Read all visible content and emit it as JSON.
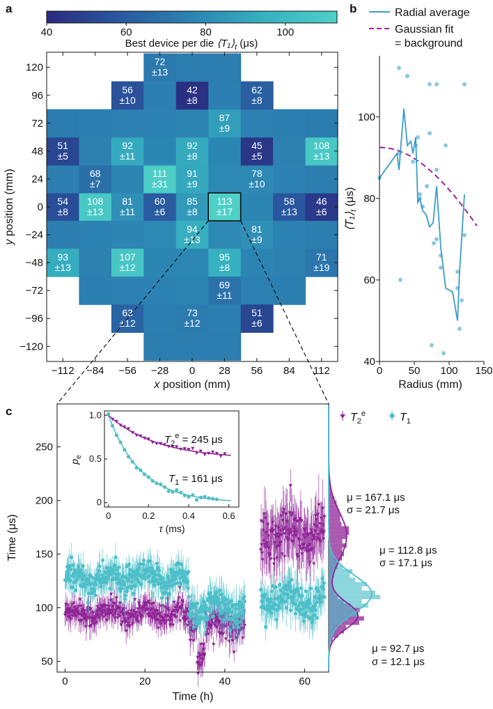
{
  "panel_labels": {
    "a": "a",
    "b": "b",
    "c": "c"
  },
  "colors": {
    "t1": "#4dbfc9",
    "t2e": "#8e2396",
    "radial": "#3a9cc8",
    "gauss": "#a0209a",
    "dots": "#8cc8e0"
  },
  "chart_data": [
    {
      "type": "heatmap",
      "panel": "a",
      "colorbar": {
        "label_prefix": "Best device per die ",
        "label_sym": "⟨T₁⟩",
        "label_sub": "t",
        "label_unit": " (μs)",
        "ticks": [
          40,
          60,
          80,
          100
        ],
        "range": [
          40,
          113
        ]
      },
      "xlabel": "x position (mm)",
      "ylabel": "y position (mm)",
      "xticks": [
        "−112",
        "−84",
        "−56",
        "−28",
        "0",
        "28",
        "56",
        "84",
        "112"
      ],
      "yticks": [
        "120",
        "96",
        "72",
        "48",
        "24",
        "0",
        "−24",
        "−48",
        "−72",
        "−96",
        "−120"
      ],
      "xtick_values": [
        -112,
        -84,
        -56,
        -28,
        0,
        28,
        56,
        84,
        112
      ],
      "ytick_values": [
        120,
        96,
        72,
        48,
        24,
        0,
        -24,
        -48,
        -72,
        -96,
        -120
      ],
      "highlight_die": [
        28,
        0
      ],
      "dies": [
        {
          "x": -28,
          "y": 120,
          "v": 72,
          "e": 13
        },
        {
          "x": -56,
          "y": 96,
          "v": 56,
          "e": 10
        },
        {
          "x": 0,
          "y": 96,
          "v": 42,
          "e": 8
        },
        {
          "x": 56,
          "y": 96,
          "v": 62,
          "e": 8
        },
        {
          "x": 28,
          "y": 72,
          "v": 87,
          "e": 9
        },
        {
          "x": -112,
          "y": 48,
          "v": 51,
          "e": 5
        },
        {
          "x": -56,
          "y": 48,
          "v": 92,
          "e": 11
        },
        {
          "x": 0,
          "y": 48,
          "v": 92,
          "e": 8
        },
        {
          "x": 56,
          "y": 48,
          "v": 45,
          "e": 5
        },
        {
          "x": 112,
          "y": 48,
          "v": 108,
          "e": 13
        },
        {
          "x": -84,
          "y": 24,
          "v": 68,
          "e": 7
        },
        {
          "x": -28,
          "y": 24,
          "v": 111,
          "e": 31
        },
        {
          "x": 0,
          "y": 24,
          "v": 91,
          "e": 9
        },
        {
          "x": 56,
          "y": 24,
          "v": 78,
          "e": 10
        },
        {
          "x": -112,
          "y": 0,
          "v": 54,
          "e": 8
        },
        {
          "x": -84,
          "y": 0,
          "v": 108,
          "e": 13
        },
        {
          "x": -56,
          "y": 0,
          "v": 81,
          "e": 11
        },
        {
          "x": -28,
          "y": 0,
          "v": 60,
          "e": 6
        },
        {
          "x": 0,
          "y": 0,
          "v": 85,
          "e": 8
        },
        {
          "x": 28,
          "y": 0,
          "v": 113,
          "e": 17
        },
        {
          "x": 84,
          "y": 0,
          "v": 58,
          "e": 13
        },
        {
          "x": 112,
          "y": 0,
          "v": 46,
          "e": 6
        },
        {
          "x": 0,
          "y": -24,
          "v": 94,
          "e": 13
        },
        {
          "x": 56,
          "y": -24,
          "v": 81,
          "e": 9
        },
        {
          "x": -112,
          "y": -48,
          "v": 93,
          "e": 13
        },
        {
          "x": -56,
          "y": -48,
          "v": 107,
          "e": 12
        },
        {
          "x": 28,
          "y": -48,
          "v": 95,
          "e": 8
        },
        {
          "x": 112,
          "y": -48,
          "v": 71,
          "e": 19
        },
        {
          "x": 28,
          "y": -72,
          "v": 69,
          "e": 11
        },
        {
          "x": -56,
          "y": -96,
          "v": 63,
          "e": 12
        },
        {
          "x": 0,
          "y": -96,
          "v": 73,
          "e": 12
        },
        {
          "x": 56,
          "y": -96,
          "v": 51,
          "e": 6
        }
      ]
    },
    {
      "type": "line",
      "panel": "b",
      "xlabel": "Radius (mm)",
      "ylabel_sym": "⟨T₁⟩",
      "ylabel_sub": "t",
      "ylabel_unit": " (μs)",
      "xlim": [
        0,
        150
      ],
      "ylim": [
        40,
        115
      ],
      "xticks": [
        0,
        50,
        100,
        150
      ],
      "yticks": [
        40,
        60,
        80,
        100
      ],
      "legend": [
        "Radial average",
        "Gaussian fit",
        "= background"
      ],
      "radial_average": {
        "x": [
          0,
          25,
          28,
          35,
          40,
          45,
          48,
          52,
          55,
          58,
          62,
          67,
          72,
          77,
          82,
          88,
          95,
          105,
          112,
          115,
          122
        ],
        "y": [
          85,
          91,
          87,
          102,
          93,
          94,
          91,
          95,
          79,
          80,
          77,
          76,
          73,
          74,
          83,
          68,
          58,
          57,
          50,
          62,
          81
        ]
      },
      "gaussian_fit": {
        "amplitude": 92.5,
        "sigma": 205,
        "x_range": [
          0,
          140
        ]
      },
      "scatter": {
        "x": [
          0,
          28,
          28,
          30,
          40,
          48,
          52,
          55,
          58,
          58,
          62,
          68,
          72,
          72,
          75,
          78,
          82,
          82,
          82,
          88,
          88,
          92,
          95,
          112,
          112,
          115,
          118,
          122,
          122
        ],
        "y": [
          85,
          91,
          112,
          60,
          110,
          89,
          93,
          95,
          80,
          81,
          78,
          83,
          96,
          108,
          44,
          69,
          108,
          87,
          70,
          63,
          66,
          42,
          93,
          62,
          58,
          48,
          55,
          108,
          71
        ]
      }
    },
    {
      "type": "scatter",
      "panel": "c",
      "xlabel": "Time (h)",
      "ylabel": "Time (μs)",
      "xlim": [
        -2,
        66
      ],
      "ylim": [
        40,
        290
      ],
      "xticks": [
        0,
        20,
        40,
        60
      ],
      "yticks": [
        50,
        100,
        150,
        200,
        250
      ],
      "legend": [
        {
          "sym": "T",
          "sub": "2",
          "sup": "e"
        },
        {
          "sym": "T",
          "sub": "1",
          "sup": ""
        }
      ],
      "series": [
        {
          "name": "T2e",
          "segments": [
            {
              "t0": 0,
              "t1": 31,
              "mean": 95,
              "sd": 9
            },
            {
              "t0": 31,
              "t1": 45,
              "mean": 85,
              "sd": 11
            },
            {
              "t0": 49,
              "t1": 65,
              "mean": 167,
              "sd": 20
            }
          ]
        },
        {
          "name": "T1",
          "segments": [
            {
              "t0": 0,
              "t1": 31,
              "mean": 127,
              "sd": 11
            },
            {
              "t0": 31,
              "t1": 45,
              "mean": 100,
              "sd": 12
            },
            {
              "t0": 49,
              "t1": 65,
              "mean": 107,
              "sd": 13
            }
          ]
        }
      ],
      "dip": {
        "t": 34,
        "value": 55
      },
      "histograms": {
        "annotations": [
          {
            "mu": "μ = 167.1 μs",
            "sigma": "σ = 21.7 μs"
          },
          {
            "mu": "μ = 112.8 μs",
            "sigma": "σ = 17.1 μs"
          },
          {
            "mu": "μ = 92.7 μs",
            "sigma": "σ = 12.1 μs"
          }
        ],
        "gaussians": [
          {
            "series": "T2e",
            "mu": 92.7,
            "sigma": 12.1,
            "weight": 0.62
          },
          {
            "series": "T2e",
            "mu": 167.1,
            "sigma": 21.7,
            "weight": 0.38
          },
          {
            "series": "T1",
            "mu": 112.8,
            "sigma": 17.1,
            "weight": 1.0
          }
        ]
      },
      "inset": {
        "xlabel": "τ (ms)",
        "ylabel_sym": "p",
        "ylabel_sub": "e",
        "xlim": [
          -0.02,
          0.65
        ],
        "ylim": [
          -0.05,
          1.05
        ],
        "xticks": [
          0,
          0.2,
          0.4,
          0.6
        ],
        "xtick_labels": [
          "0",
          "0.2",
          "0.4",
          "0.6"
        ],
        "yticks": [
          0,
          0.5,
          1.0
        ],
        "ytick_labels": [
          "0",
          "0.5",
          "1.0"
        ],
        "t2e_label": {
          "sym": "T",
          "sub": "2",
          "sup": "e",
          "value": " = 245 μs"
        },
        "t1_label": {
          "sym": "T",
          "sub": "1",
          "value": " = 161 μs"
        },
        "t2e_fit": {
          "tau_ms": 0.245,
          "offset": 0.5,
          "amp": 0.5
        },
        "t1_fit": {
          "tau_ms": 0.161,
          "offset": 0.0,
          "amp": 1.0
        }
      }
    }
  ]
}
